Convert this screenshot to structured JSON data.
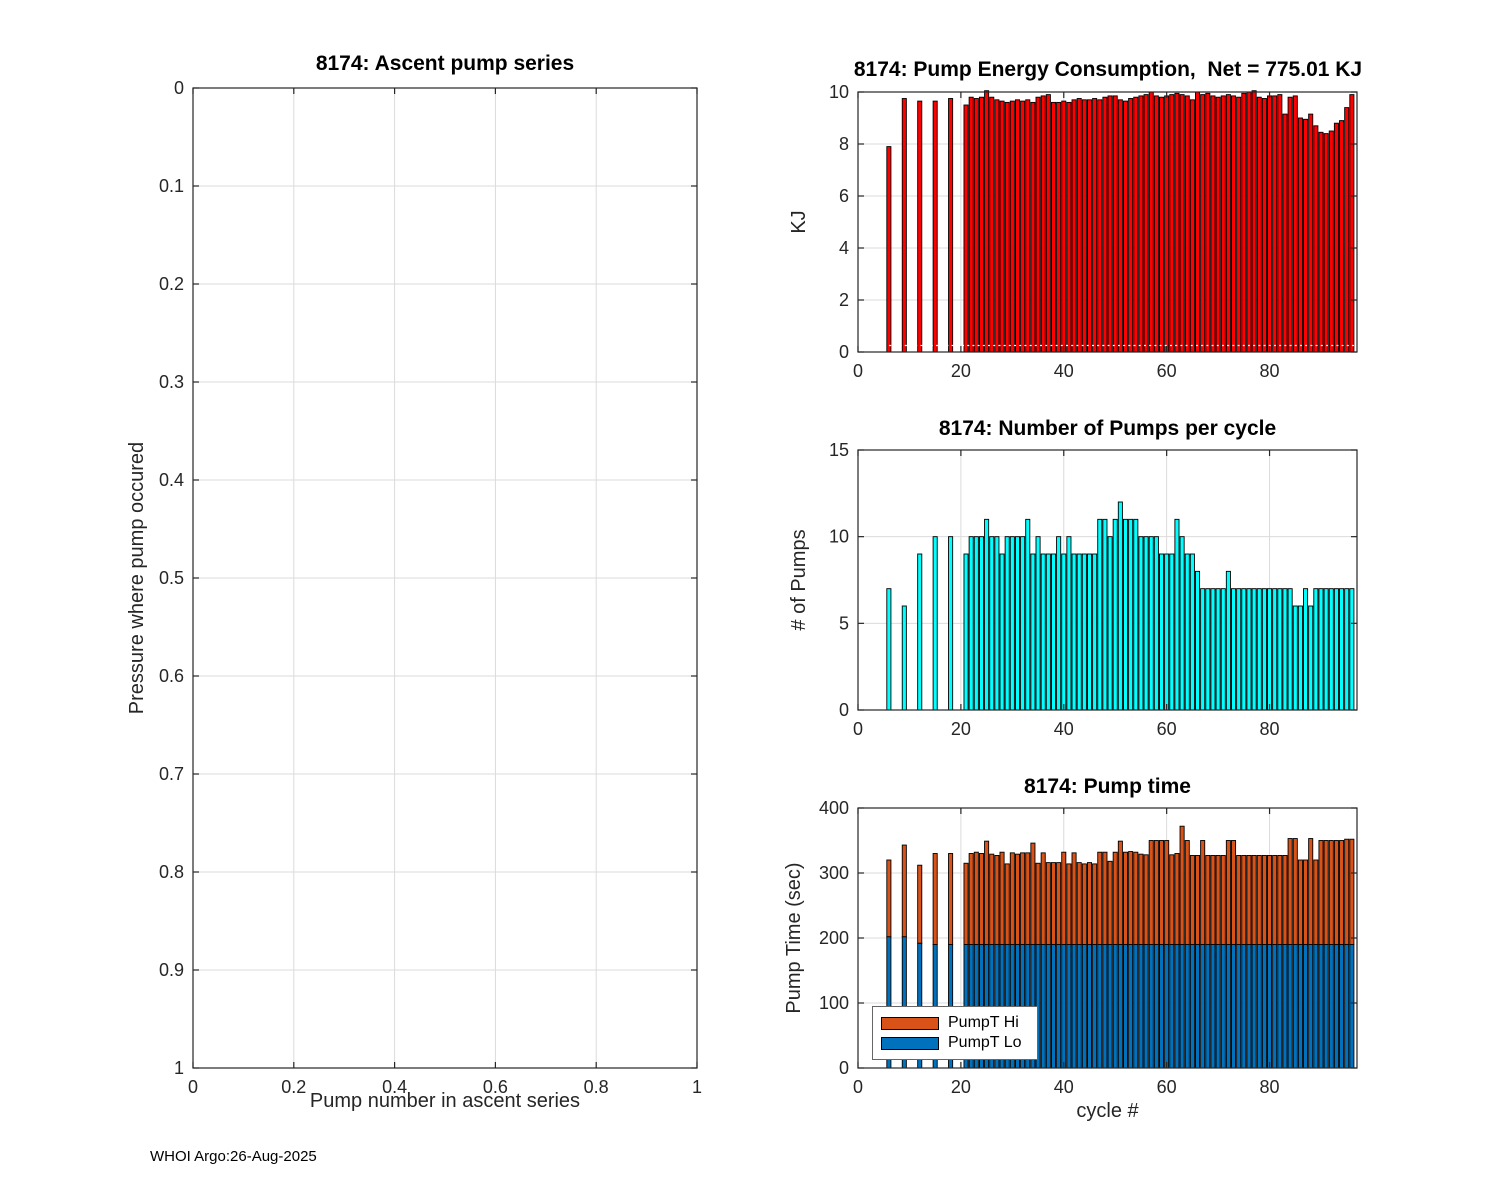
{
  "figure": {
    "footer": "WHOI Argo:26-Aug-2025"
  },
  "colors": {
    "red": "#ff0000",
    "cyan": "#00ffff",
    "orange": "#d95319",
    "blue": "#0072bd",
    "grid": "#dbdbdb",
    "axis": "#262626",
    "bar_edge": "#000000",
    "dotted_line": "#ffffff"
  },
  "chart_data": [
    {
      "id": "ascent",
      "type": "scatter",
      "title": "8174: Ascent pump series",
      "xlabel": "Pump number in ascent series",
      "ylabel": "Pressure where pump occured",
      "xlim": [
        0,
        1
      ],
      "ylim": [
        0,
        1
      ],
      "y_reversed": true,
      "grid": true,
      "xticks": [
        0,
        0.2,
        0.4,
        0.6,
        0.8,
        1
      ],
      "yticks": [
        0,
        0.1,
        0.2,
        0.3,
        0.4,
        0.5,
        0.6,
        0.7,
        0.8,
        0.9,
        1
      ],
      "points": []
    },
    {
      "id": "energy",
      "type": "bar",
      "title": "8174: Pump Energy Consumption,  Net = 775.01 KJ",
      "xlabel": "",
      "ylabel": "KJ",
      "net_label": "Net = 775.01 KJ",
      "xlim": [
        0,
        97
      ],
      "ylim": [
        0,
        10
      ],
      "grid": true,
      "bar_width": 0.8,
      "color_key": "red",
      "dotted_line_y": 0.25,
      "xticks": [
        0,
        20,
        40,
        60,
        80
      ],
      "yticks": [
        0,
        2,
        4,
        6,
        8,
        10
      ],
      "x": [
        6,
        9,
        12,
        15,
        18,
        21,
        22,
        23,
        24,
        25,
        26,
        27,
        28,
        29,
        30,
        31,
        32,
        33,
        34,
        35,
        36,
        37,
        38,
        39,
        40,
        41,
        42,
        43,
        44,
        45,
        46,
        47,
        48,
        49,
        50,
        51,
        52,
        53,
        54,
        55,
        56,
        57,
        58,
        59,
        60,
        61,
        62,
        63,
        64,
        65,
        66,
        67,
        68,
        69,
        70,
        71,
        72,
        73,
        74,
        75,
        76,
        77,
        78,
        79,
        80,
        81,
        82,
        83,
        84,
        85,
        86,
        87,
        88,
        89,
        90,
        91,
        92,
        93,
        94,
        95,
        96
      ],
      "values": [
        7.9,
        9.75,
        9.65,
        9.65,
        9.75,
        9.5,
        9.8,
        9.75,
        9.8,
        10.05,
        9.8,
        9.7,
        9.65,
        9.6,
        9.65,
        9.7,
        9.65,
        9.7,
        9.6,
        9.8,
        9.85,
        9.9,
        9.6,
        9.6,
        9.65,
        9.6,
        9.7,
        9.75,
        9.7,
        9.7,
        9.75,
        9.7,
        9.8,
        9.85,
        9.85,
        9.7,
        9.65,
        9.75,
        9.8,
        9.85,
        9.9,
        10.0,
        9.85,
        9.8,
        9.85,
        9.9,
        9.95,
        9.9,
        9.85,
        9.7,
        10.0,
        9.9,
        9.95,
        9.85,
        9.8,
        9.85,
        9.9,
        9.85,
        9.8,
        9.95,
        10.0,
        10.05,
        9.8,
        9.75,
        9.85,
        9.85,
        9.9,
        9.15,
        9.8,
        9.85,
        9.0,
        8.95,
        9.15,
        8.7,
        8.45,
        8.4,
        8.5,
        8.8,
        8.9,
        9.4,
        9.9
      ]
    },
    {
      "id": "pumps",
      "type": "bar",
      "title": "8174: Number of Pumps per cycle",
      "xlabel": "",
      "ylabel": "# of Pumps",
      "xlim": [
        0,
        97
      ],
      "ylim": [
        0,
        15
      ],
      "grid": true,
      "bar_width": 0.8,
      "color_key": "cyan",
      "xticks": [
        0,
        20,
        40,
        60,
        80
      ],
      "yticks": [
        0,
        5,
        10,
        15
      ],
      "x": [
        6,
        9,
        12,
        15,
        18,
        21,
        22,
        23,
        24,
        25,
        26,
        27,
        28,
        29,
        30,
        31,
        32,
        33,
        34,
        35,
        36,
        37,
        38,
        39,
        40,
        41,
        42,
        43,
        44,
        45,
        46,
        47,
        48,
        49,
        50,
        51,
        52,
        53,
        54,
        55,
        56,
        57,
        58,
        59,
        60,
        61,
        62,
        63,
        64,
        65,
        66,
        67,
        68,
        69,
        70,
        71,
        72,
        73,
        74,
        75,
        76,
        77,
        78,
        79,
        80,
        81,
        82,
        83,
        84,
        85,
        86,
        87,
        88,
        89,
        90,
        91,
        92,
        93,
        94,
        95,
        96
      ],
      "values": [
        7,
        6,
        9,
        10,
        10,
        9,
        10,
        10,
        10,
        11,
        10,
        10,
        9,
        10,
        10,
        10,
        10,
        11,
        9,
        10,
        9,
        9,
        9,
        10,
        9,
        10,
        9,
        9,
        9,
        9,
        9,
        11,
        11,
        10,
        11,
        12,
        11,
        11,
        11,
        10,
        10,
        10,
        10,
        9,
        9,
        9,
        11,
        10,
        9,
        9,
        8,
        7,
        7,
        7,
        7,
        7,
        8,
        7,
        7,
        7,
        7,
        7,
        7,
        7,
        7,
        7,
        7,
        7,
        7,
        6,
        6,
        7,
        6,
        7,
        7,
        7,
        7,
        7,
        7,
        7,
        7
      ]
    },
    {
      "id": "pumptime",
      "type": "stacked-bar",
      "title": "8174: Pump time",
      "xlabel": "cycle #",
      "ylabel": "Pump Time (sec)",
      "xlim": [
        0,
        97
      ],
      "ylim": [
        0,
        400
      ],
      "grid": true,
      "bar_width": 0.8,
      "legend_position": "lower-left",
      "xticks": [
        0,
        20,
        40,
        60,
        80
      ],
      "yticks": [
        0,
        100,
        200,
        300,
        400
      ],
      "x": [
        6,
        9,
        12,
        15,
        18,
        21,
        22,
        23,
        24,
        25,
        26,
        27,
        28,
        29,
        30,
        31,
        32,
        33,
        34,
        35,
        36,
        37,
        38,
        39,
        40,
        41,
        42,
        43,
        44,
        45,
        46,
        47,
        48,
        49,
        50,
        51,
        52,
        53,
        54,
        55,
        56,
        57,
        58,
        59,
        60,
        61,
        62,
        63,
        64,
        65,
        66,
        67,
        68,
        69,
        70,
        71,
        72,
        73,
        74,
        75,
        76,
        77,
        78,
        79,
        80,
        81,
        82,
        83,
        84,
        85,
        86,
        87,
        88,
        89,
        90,
        91,
        92,
        93,
        94,
        95,
        96
      ],
      "series": [
        {
          "name": "PumpT Hi",
          "color_key": "orange",
          "values": [
            118,
            141,
            120,
            140,
            140,
            125,
            140,
            142,
            140,
            159,
            139,
            137,
            142,
            124,
            141,
            139,
            141,
            141,
            156,
            125,
            141,
            126,
            126,
            126,
            142,
            124,
            141,
            126,
            124,
            126,
            124,
            142,
            142,
            128,
            142,
            159,
            142,
            143,
            142,
            139,
            138,
            160,
            160,
            160,
            160,
            138,
            140,
            182,
            160,
            137,
            137,
            160,
            137,
            137,
            137,
            137,
            160,
            160,
            137,
            137,
            137,
            137,
            137,
            137,
            137,
            137,
            137,
            137,
            163,
            163,
            130,
            130,
            163,
            130,
            160,
            160,
            160,
            160,
            160,
            162,
            162
          ]
        },
        {
          "name": "PumpT Lo",
          "color_key": "blue",
          "values": [
            202,
            202,
            192,
            190,
            190,
            190,
            190,
            190,
            190,
            190,
            190,
            190,
            190,
            190,
            190,
            190,
            190,
            190,
            190,
            190,
            190,
            190,
            190,
            190,
            190,
            190,
            190,
            190,
            190,
            190,
            190,
            190,
            190,
            190,
            190,
            190,
            190,
            190,
            190,
            190,
            190,
            190,
            190,
            190,
            190,
            190,
            190,
            190,
            190,
            190,
            190,
            190,
            190,
            190,
            190,
            190,
            190,
            190,
            190,
            190,
            190,
            190,
            190,
            190,
            190,
            190,
            190,
            190,
            190,
            190,
            190,
            190,
            190,
            190,
            190,
            190,
            190,
            190,
            190,
            190,
            190
          ]
        }
      ]
    }
  ]
}
